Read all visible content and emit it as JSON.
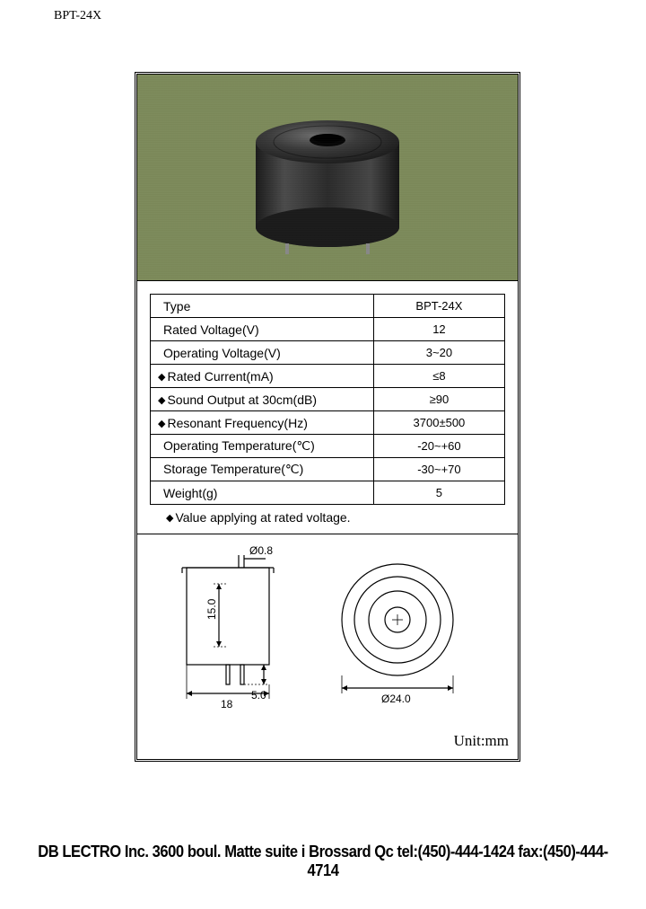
{
  "header": {
    "code": "BPT-24X"
  },
  "product_photo": {
    "background_color": "#7c8a5a",
    "body_color": "#2a2a2a",
    "highlight_color": "#555555",
    "hole_color": "#0a0a0a"
  },
  "spec_table": {
    "rows": [
      {
        "label": "Type",
        "value": "BPT-24X",
        "diamond": false
      },
      {
        "label": "Rated Voltage(V)",
        "value": "12",
        "diamond": false
      },
      {
        "label": "Operating Voltage(V)",
        "value": "3~20",
        "diamond": false
      },
      {
        "label": "Rated Current(mA)",
        "value": "≤8",
        "diamond": true
      },
      {
        "label": "Sound Output at 30cm(dB)",
        "value": "≥90",
        "diamond": true
      },
      {
        "label": "Resonant Frequency(Hz)",
        "value": "3700±500",
        "diamond": true
      },
      {
        "label": "Operating Temperature(℃)",
        "value": "-20~+60",
        "diamond": false
      },
      {
        "label": "Storage Temperature(℃)",
        "value": "-30~+70",
        "diamond": false
      },
      {
        "label": "Weight(g)",
        "value": "5",
        "diamond": false
      }
    ],
    "note": "Value applying at rated voltage."
  },
  "drawing": {
    "unit_label": "Unit:mm",
    "side": {
      "width_label": "18",
      "pin_len_label": "5.0",
      "height_label": "15.0",
      "hole_dia_label": "Ø0.8"
    },
    "front": {
      "outer_dia_label": "Ø24.0"
    },
    "stroke_color": "#000000",
    "text_fontsize": 12
  },
  "footer": {
    "text": "DB LECTRO Inc. 3600 boul. Matte suite i Brossard Qc tel:(450)-444-1424 fax:(450)-444-4714"
  }
}
